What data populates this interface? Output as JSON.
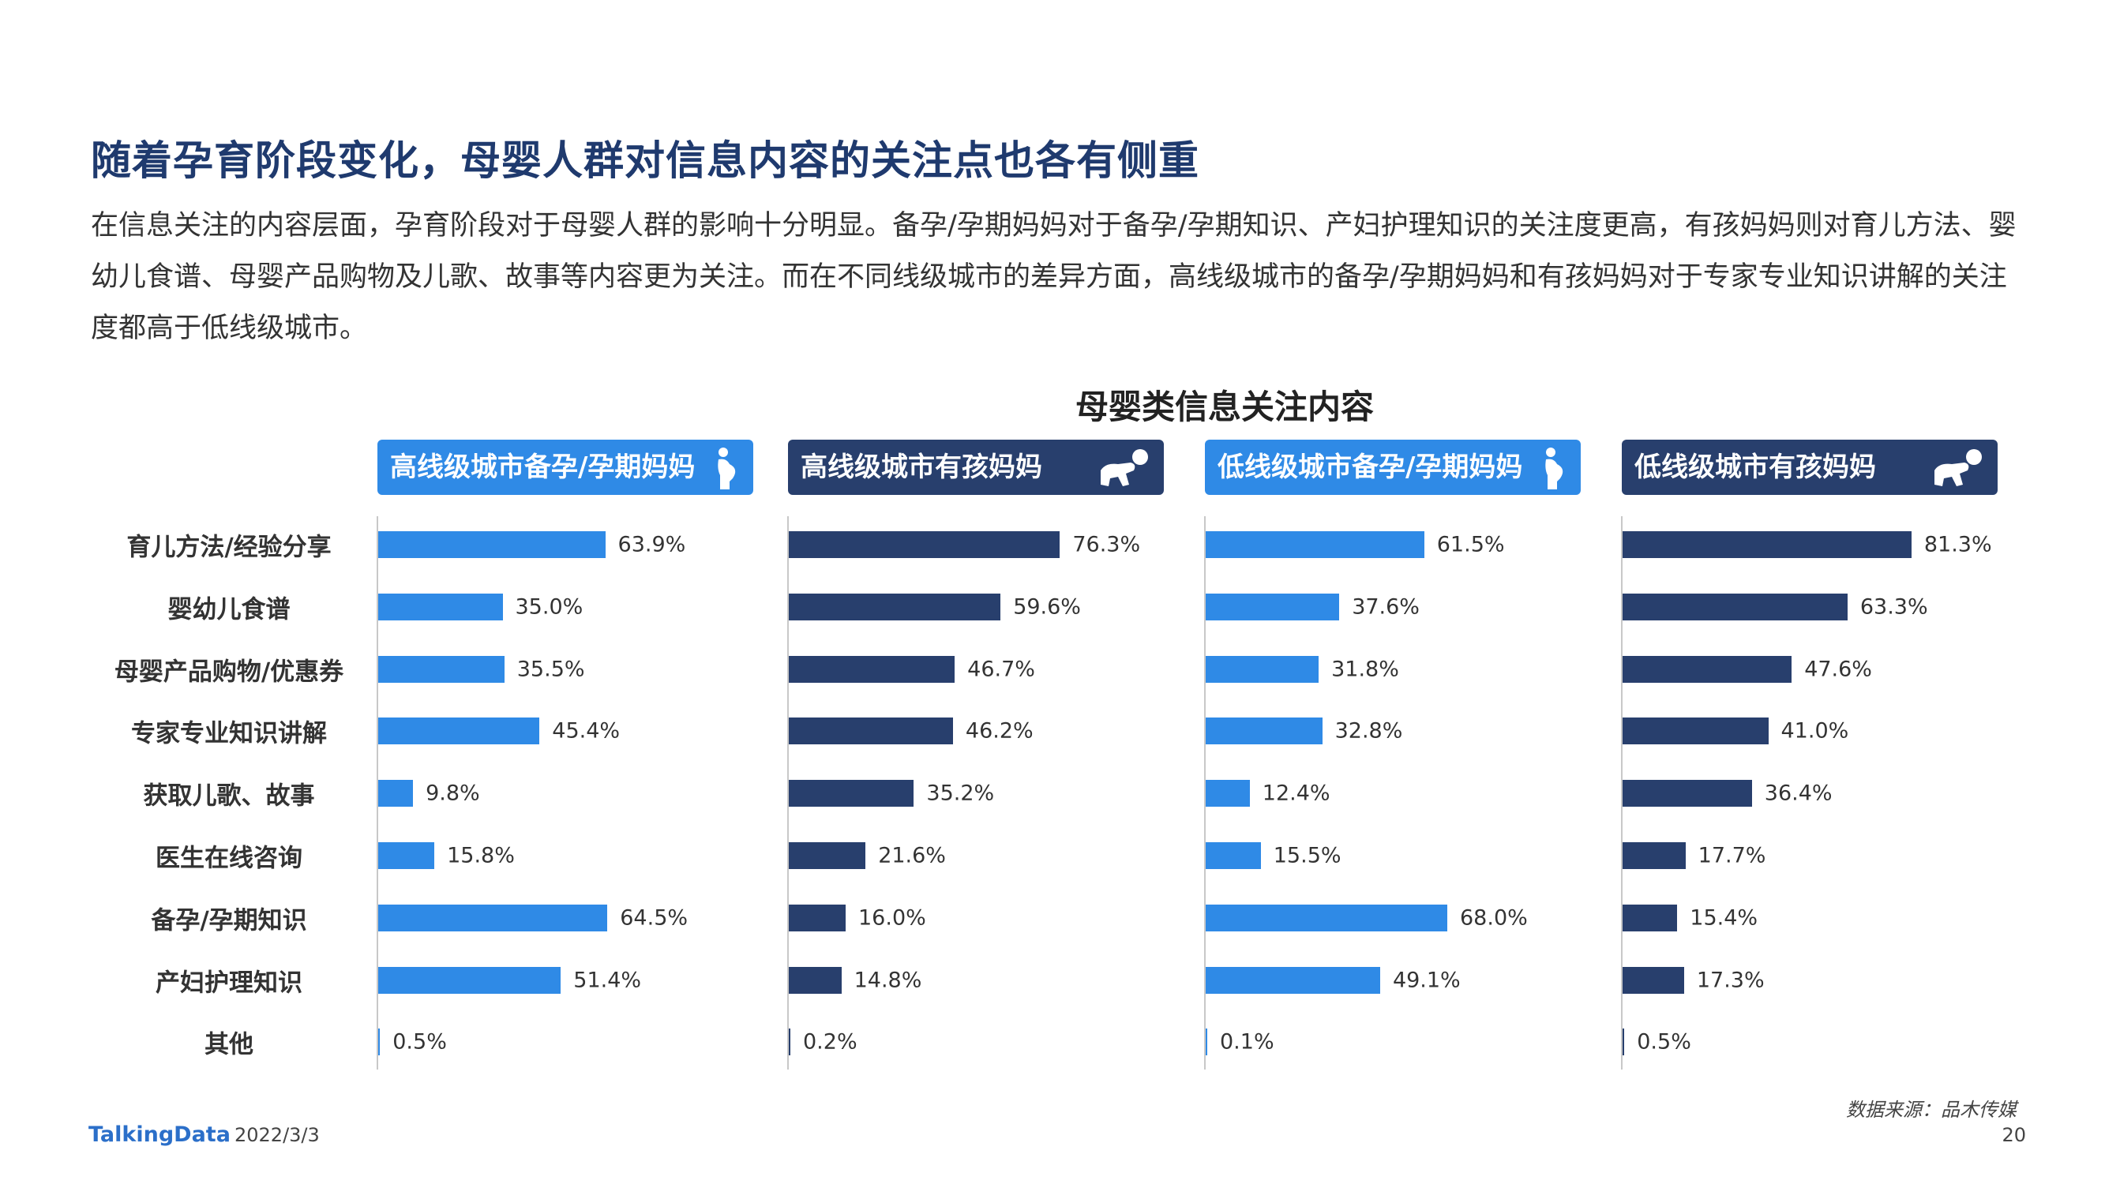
{
  "title": "随着孕育阶段变化，母婴人群对信息内容的关注点也各有侧重",
  "description": "在信息关注的内容层面，孕育阶段对于母婴人群的影响十分明显。备孕/孕期妈妈对于备孕/孕期知识、产妇护理知识的关注度更高，有孩妈妈则对育儿方法、婴幼儿食谱、母婴产品购物及儿歌、故事等内容更为关注。而在不同线级城市的差异方面，高线级城市的备孕/孕期妈妈和有孩妈妈对于专家专业知识讲解的关注度都高于低线级城市。",
  "footer": {
    "logo": "TalkingData",
    "date": "2022/3/3",
    "source": "数据来源：品木传媒",
    "page_number": "20"
  },
  "colors": {
    "light_blue": "#2f8ae6",
    "dark_navy": "#283f6d",
    "title_navy": "#1f3a6e"
  },
  "chart_data": {
    "type": "bar",
    "orientation": "horizontal",
    "title": "母婴类信息关注内容",
    "categories": [
      "育儿方法/经验分享",
      "婴幼儿食谱",
      "母婴产品购物/优惠券",
      "专家专业知识讲解",
      "获取儿歌、故事",
      "医生在线咨询",
      "备孕/孕期知识",
      "产妇护理知识",
      "其他"
    ],
    "unit": "%",
    "xlim": [
      0,
      100
    ],
    "series": [
      {
        "name": "高线级城市备孕/孕期妈妈",
        "color": "#2f8ae6",
        "icon": "pregnant-woman-icon",
        "values": [
          63.9,
          35.0,
          35.5,
          45.4,
          9.8,
          15.8,
          64.5,
          51.4,
          0.5
        ]
      },
      {
        "name": "高线级城市有孩妈妈",
        "color": "#283f6d",
        "icon": "crawling-baby-icon",
        "values": [
          76.3,
          59.6,
          46.7,
          46.2,
          35.2,
          21.6,
          16.0,
          14.8,
          0.2
        ]
      },
      {
        "name": "低线级城市备孕/孕期妈妈",
        "color": "#2f8ae6",
        "icon": "pregnant-woman-icon",
        "values": [
          61.5,
          37.6,
          31.8,
          32.8,
          12.4,
          15.5,
          68.0,
          49.1,
          0.1
        ]
      },
      {
        "name": "低线级城市有孩妈妈",
        "color": "#283f6d",
        "icon": "crawling-baby-icon",
        "values": [
          81.3,
          63.3,
          47.6,
          41.0,
          36.4,
          17.7,
          15.4,
          17.3,
          0.5
        ]
      }
    ]
  }
}
